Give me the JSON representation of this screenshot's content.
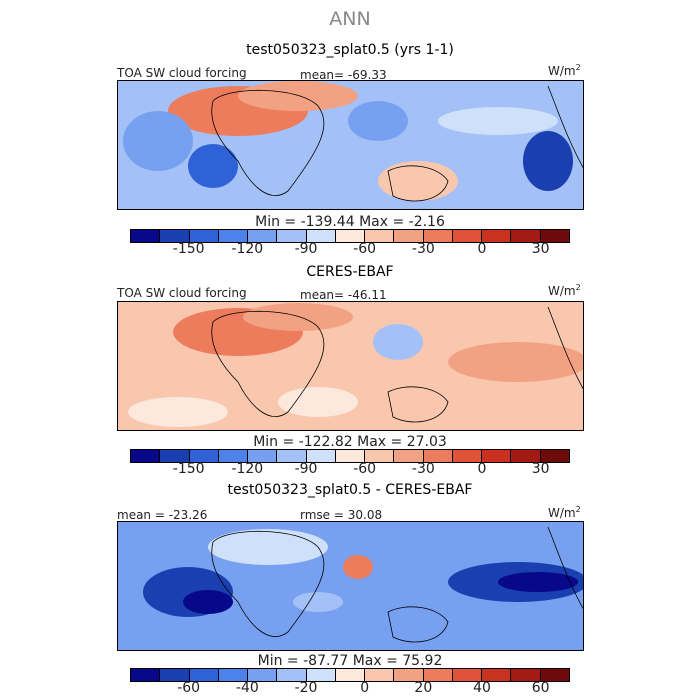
{
  "figure": {
    "title": "ANN"
  },
  "chart_data": [
    {
      "type": "heatmap",
      "title": "test050323_splat0.5 (yrs 1-1)",
      "left_label": "TOA SW cloud forcing",
      "center_label": "mean= -69.33",
      "units": "W/m",
      "units_sup": "2",
      "min_max": "Min = -139.44  Max =  -2.16",
      "mean": -69.33,
      "min": -139.44,
      "max": -2.16,
      "colorbar": {
        "levels": [
          -170,
          -150,
          -135,
          -120,
          -105,
          -90,
          -75,
          -60,
          -45,
          -30,
          -15,
          0,
          15,
          30,
          45
        ],
        "tick_labels": [
          "-150",
          "-120",
          "-90",
          "-60",
          "-30",
          "0",
          "30"
        ],
        "colors": [
          "#08088a",
          "#1a3fb0",
          "#2e62d6",
          "#4d82ea",
          "#77a1f0",
          "#a3c1f6",
          "#cfe0fa",
          "#fce8dc",
          "#f8c7ae",
          "#f3a183",
          "#ec7c5c",
          "#e0533a",
          "#c9321f",
          "#a31a14",
          "#6e0a0a"
        ]
      }
    },
    {
      "type": "heatmap",
      "title": "CERES-EBAF",
      "left_label": "TOA SW cloud forcing",
      "center_label": "mean= -46.11",
      "units": "W/m",
      "units_sup": "2",
      "min_max": "Min = -122.82  Max =  27.03",
      "mean": -46.11,
      "min": -122.82,
      "max": 27.03,
      "colorbar": {
        "levels": [
          -170,
          -150,
          -135,
          -120,
          -105,
          -90,
          -75,
          -60,
          -45,
          -30,
          -15,
          0,
          15,
          30,
          45
        ],
        "tick_labels": [
          "-150",
          "-120",
          "-90",
          "-60",
          "-30",
          "0",
          "30"
        ],
        "colors": [
          "#08088a",
          "#1a3fb0",
          "#2e62d6",
          "#4d82ea",
          "#77a1f0",
          "#a3c1f6",
          "#cfe0fa",
          "#fce8dc",
          "#f8c7ae",
          "#f3a183",
          "#ec7c5c",
          "#e0533a",
          "#c9321f",
          "#a31a14",
          "#6e0a0a"
        ]
      }
    },
    {
      "type": "heatmap",
      "title": "test050323_splat0.5 - CERES-EBAF",
      "left_label": "mean = -23.26",
      "center_label": "rmse =   30.08",
      "units": "W/m",
      "units_sup": "2",
      "min_max": "Min = -87.77  Max =  75.92",
      "mean": -23.26,
      "rmse": 30.08,
      "min": -87.77,
      "max": 75.92,
      "colorbar": {
        "levels": [
          -70,
          -60,
          -50,
          -40,
          -30,
          -20,
          -10,
          0,
          10,
          20,
          30,
          40,
          50,
          60,
          70
        ],
        "tick_labels": [
          "-60",
          "-40",
          "-20",
          "0",
          "20",
          "40",
          "60"
        ],
        "colors": [
          "#08088a",
          "#1a3fb0",
          "#2e62d6",
          "#4d82ea",
          "#77a1f0",
          "#a3c1f6",
          "#cfe0fa",
          "#fce8dc",
          "#f8c7ae",
          "#f3a183",
          "#ec7c5c",
          "#e0533a",
          "#c9321f",
          "#a31a14",
          "#6e0a0a"
        ]
      }
    }
  ]
}
